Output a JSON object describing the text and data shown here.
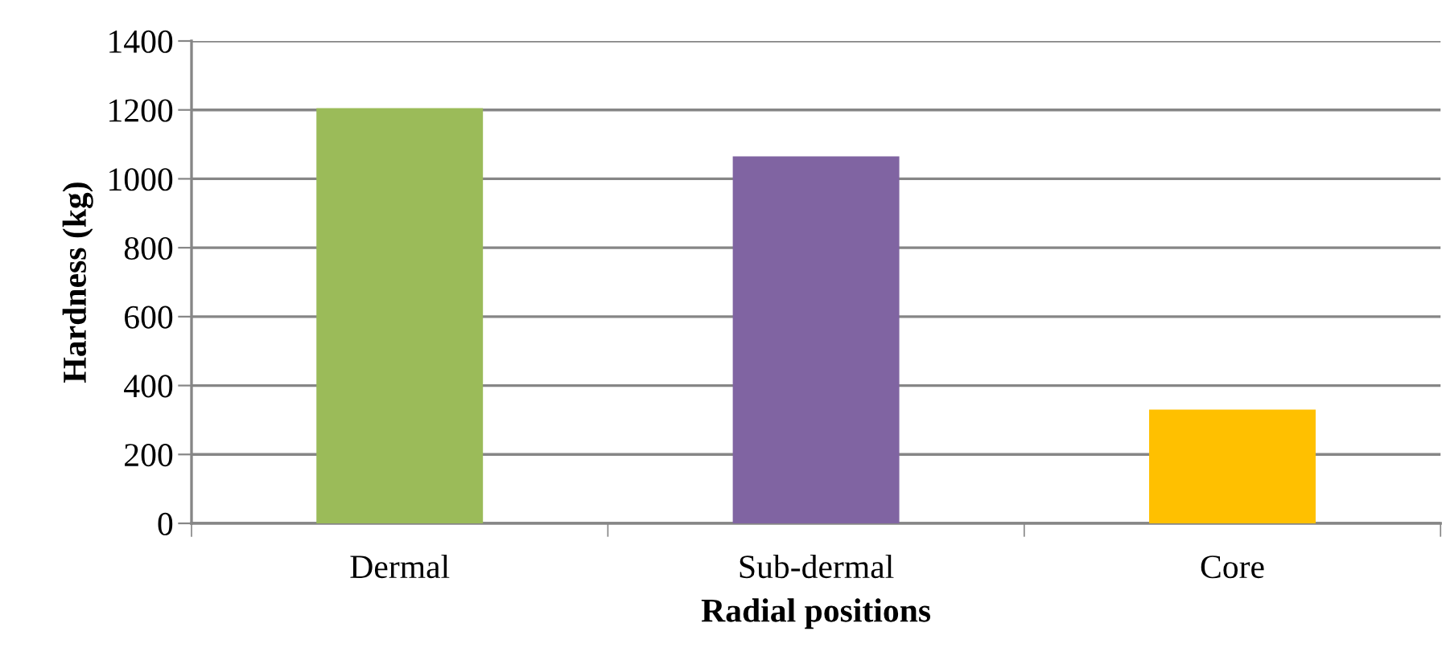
{
  "chart_data": {
    "type": "bar",
    "xlabel": "Radial positions",
    "ylabel": "Hardness (kg)",
    "categories": [
      "Dermal",
      "Sub-dermal",
      "Core"
    ],
    "values": [
      1205,
      1065,
      330
    ],
    "colors": [
      "#9bbb59",
      "#8064a2",
      "#ffc000"
    ],
    "ylim": [
      0,
      1400
    ],
    "yticks": [
      0,
      200,
      400,
      600,
      800,
      1000,
      1200,
      1400
    ],
    "grid": "y",
    "legend": false
  }
}
